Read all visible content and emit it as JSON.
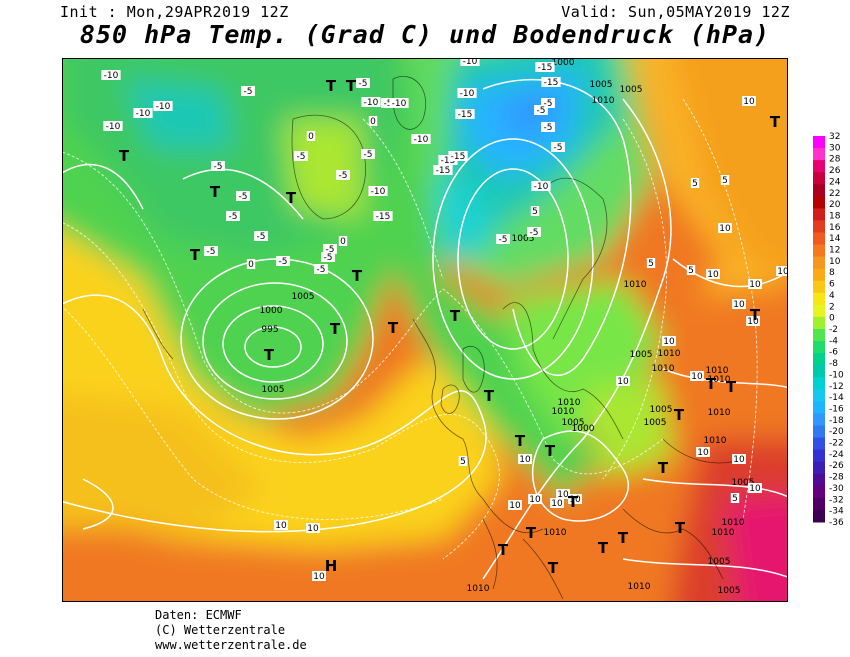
{
  "header": {
    "init": "Init : Mon,29APR2019 12Z",
    "valid": "Valid: Sun,05MAY2019 12Z",
    "title": "850 hPa Temp. (Grad C) und Bodendruck (hPa)"
  },
  "legend": {
    "ticks": [
      "32",
      "30",
      "28",
      "26",
      "24",
      "22",
      "20",
      "18",
      "16",
      "14",
      "12",
      "10",
      "8",
      "6",
      "4",
      "2",
      "0",
      "-2",
      "-4",
      "-6",
      "-8",
      "-10",
      "-12",
      "-14",
      "-16",
      "-18",
      "-20",
      "-22",
      "-24",
      "-26",
      "-28",
      "-30",
      "-32",
      "-34",
      "-36"
    ],
    "colors": [
      "#ff00ff",
      "#ff33cc",
      "#e60073",
      "#c8003c",
      "#a80020",
      "#b40000",
      "#d21e1e",
      "#e63c1e",
      "#f05a1e",
      "#f5781e",
      "#f5961e",
      "#faaa14",
      "#fac814",
      "#f5e614",
      "#e6f51e",
      "#a0f032",
      "#50e650",
      "#1edc6e",
      "#00d28c",
      "#00c8aa",
      "#00d2d2",
      "#14c8f0",
      "#1eb4ff",
      "#3296ff",
      "#3278f0",
      "#3250e6",
      "#3232d2",
      "#3c1eb4",
      "#500a96",
      "#64007d",
      "#500064",
      "#3c0050"
    ],
    "colors_note": ""
  },
  "map": {
    "pressure_labels": [
      "1000",
      "1005",
      "995",
      "1000",
      "1005",
      "1005",
      "1005",
      "1005",
      "1010",
      "1010",
      "1010",
      "1005",
      "1010",
      "1005",
      "1010",
      "1010",
      "1010",
      "1000",
      "1005",
      "1010",
      "1010",
      "1005",
      "1005",
      "1010",
      "1010",
      "1010",
      "1005",
      "1010",
      "1005",
      "1010",
      "1010"
    ],
    "temp_labels": [
      "-10",
      "-10",
      "-10",
      "-10",
      "-5",
      "-5",
      "-10",
      "-15",
      "-15",
      "-10",
      "-5",
      "0",
      "-5",
      "-5",
      "-10",
      "-15",
      "-15",
      "-15",
      "-15",
      "-15",
      "-10",
      "-10",
      "-5",
      "-5",
      "-5",
      "-5",
      "0",
      "-5",
      "-5",
      "-10",
      "-10",
      "-5",
      "-5",
      "-5",
      "-5",
      "-5",
      "-5",
      "0",
      "-5",
      "-5",
      "0",
      "5",
      "5",
      "5",
      "5",
      "10",
      "10",
      "10",
      "10",
      "10",
      "10",
      "10",
      "10",
      "10",
      "10",
      "10",
      "10",
      "5",
      "5",
      "10",
      "10",
      "10",
      "10",
      "10",
      "10",
      "10",
      "10",
      "-5",
      "-5",
      "5",
      "10",
      "10"
    ],
    "markers": [
      "T",
      "T",
      "T",
      "T",
      "T",
      "T",
      "T",
      "T",
      "T",
      "T",
      "T",
      "T",
      "T",
      "T",
      "T",
      "T",
      "T",
      "T",
      "T",
      "T",
      "T",
      "T",
      "T",
      "T",
      "T",
      "T",
      "T",
      "H"
    ]
  },
  "credits": {
    "line1": "Daten: ECMWF",
    "line2": "(C) Wetterzentrale",
    "line3": "www.wetterzentrale.de"
  }
}
